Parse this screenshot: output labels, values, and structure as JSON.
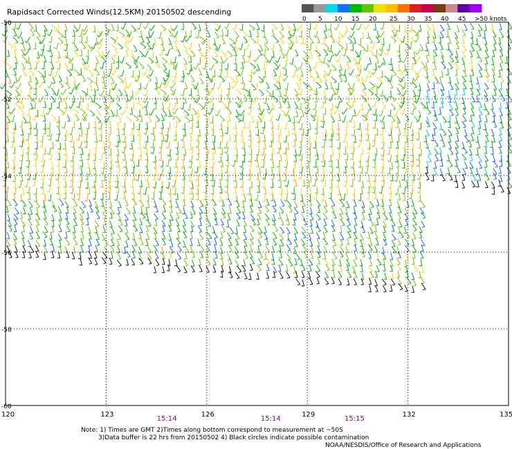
{
  "title": "Rapidsact Corrected Winds(12.5KM) 20150502 descending",
  "colorbar": {
    "ticks": [
      "0",
      "5",
      "10",
      "15",
      "20",
      "25",
      "30",
      "35",
      "40",
      "45",
      ">50 knots"
    ],
    "colors": [
      "#555555",
      "#999999",
      "#00d8f0",
      "#1070ff",
      "#00b800",
      "#60c800",
      "#f0e000",
      "#ffc000",
      "#ff7000",
      "#e02020",
      "#cc0050",
      "#7a3a10",
      "#cc8888",
      "#5a00a0",
      "#a000ff"
    ]
  },
  "chart_data": {
    "type": "wind-barb map",
    "x_axis": {
      "range": [
        120,
        135
      ],
      "ticks": [
        120,
        123,
        126,
        129,
        132,
        135
      ]
    },
    "y_axis": {
      "range": [
        -60,
        -50
      ],
      "ticks": [
        -50,
        -52,
        -54,
        -56,
        -58,
        -60
      ]
    },
    "time_labels": [
      {
        "lon": 124.8,
        "text": "15:14"
      },
      {
        "lon": 127.9,
        "text": "15:14"
      },
      {
        "lon": 130.4,
        "text": "15:15"
      }
    ],
    "swaths": [
      {
        "lon_min": 120,
        "lon_max": 132.5,
        "lat_north": -50,
        "lat_south_west": -56.0,
        "lat_south_east": -57.0
      },
      {
        "lon_min": 132.5,
        "lon_max": 135,
        "lat_north": -50,
        "lat_south_west": -54.0,
        "lat_south_east": -54.4
      }
    ],
    "wind_speed_regions": [
      {
        "lat_range": [
          -52.5,
          -50
        ],
        "dominant_knots": 22
      },
      {
        "lat_range": [
          -54.5,
          -52.5
        ],
        "dominant_knots": 24
      },
      {
        "lat_range": [
          -56,
          -54.5
        ],
        "dominant_knots": 18
      },
      {
        "lat_range": [
          -54,
          -51.5
        ],
        "lon_range": [
          132.5,
          135
        ],
        "dominant_knots": 14
      }
    ]
  },
  "notes": {
    "line1": "Note: 1) Times are GMT 2)Times along bottom correspond to measurement at ~50S",
    "line2": "3)Data buffer is 22 hrs from 20150502 4) Black circles indicate possible contamination",
    "credit": "NOAA/NESDIS/Office of Research and Applications"
  }
}
